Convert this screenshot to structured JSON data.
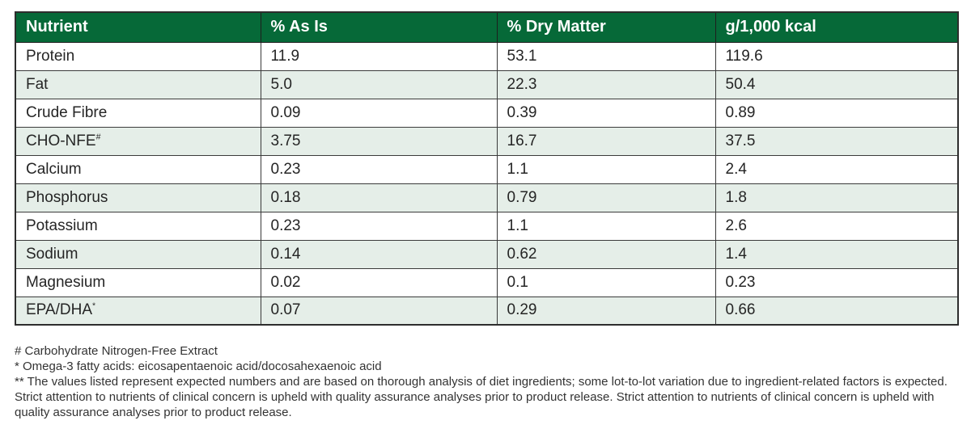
{
  "colors": {
    "header_bg": "#066938",
    "header_text": "#ffffff",
    "row_alt_bg": "#e5eee8",
    "border": "#2d2d2d"
  },
  "table": {
    "columns": [
      "Nutrient",
      "% As Is",
      "% Dry Matter",
      "g/1,000 kcal"
    ],
    "rows": [
      {
        "nutrient": "Protein",
        "sup": "",
        "as_is": "11.9",
        "dry_matter": "53.1",
        "g_per_1000_kcal": "119.6"
      },
      {
        "nutrient": "Fat",
        "sup": "",
        "as_is": "5.0",
        "dry_matter": "22.3",
        "g_per_1000_kcal": "50.4"
      },
      {
        "nutrient": "Crude Fibre",
        "sup": "",
        "as_is": "0.09",
        "dry_matter": "0.39",
        "g_per_1000_kcal": "0.89"
      },
      {
        "nutrient": "CHO-NFE",
        "sup": "#",
        "as_is": "3.75",
        "dry_matter": "16.7",
        "g_per_1000_kcal": "37.5"
      },
      {
        "nutrient": "Calcium",
        "sup": "",
        "as_is": "0.23",
        "dry_matter": "1.1",
        "g_per_1000_kcal": "2.4"
      },
      {
        "nutrient": "Phosphorus",
        "sup": "",
        "as_is": "0.18",
        "dry_matter": "0.79",
        "g_per_1000_kcal": "1.8"
      },
      {
        "nutrient": "Potassium",
        "sup": "",
        "as_is": "0.23",
        "dry_matter": "1.1",
        "g_per_1000_kcal": "2.6"
      },
      {
        "nutrient": "Sodium",
        "sup": "",
        "as_is": "0.14",
        "dry_matter": "0.62",
        "g_per_1000_kcal": "1.4"
      },
      {
        "nutrient": "Magnesium",
        "sup": "",
        "as_is": "0.02",
        "dry_matter": "0.1",
        "g_per_1000_kcal": "0.23"
      },
      {
        "nutrient": "EPA/DHA",
        "sup": "*",
        "as_is": "0.07",
        "dry_matter": "0.29",
        "g_per_1000_kcal": "0.66"
      }
    ]
  },
  "footnotes": [
    "# Carbohydrate Nitrogen-Free Extract",
    "* Omega-3 fatty acids: eicosapentaenoic acid/docosahexaenoic acid",
    "** The values listed represent expected numbers and are based on thorough analysis of diet ingredients; some lot-to-lot variation due to ingredient-related factors is expected. Strict attention to nutrients of clinical concern is upheld with quality assurance analyses prior to product release. Strict attention to nutrients of clinical concern is upheld with quality assurance analyses prior to product release."
  ]
}
